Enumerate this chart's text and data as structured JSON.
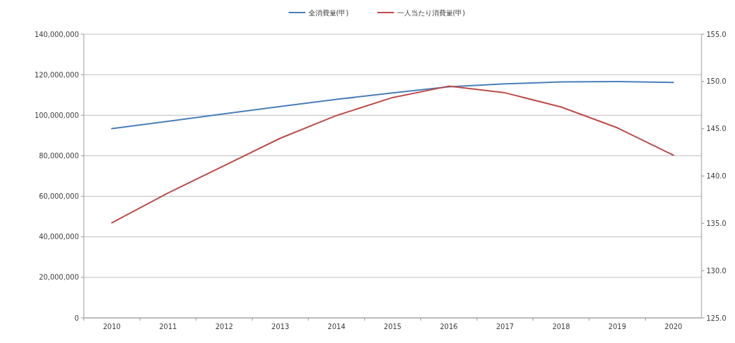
{
  "chart_data": {
    "type": "line",
    "categories": [
      "2010",
      "2011",
      "2012",
      "2013",
      "2014",
      "2015",
      "2016",
      "2017",
      "2018",
      "2019",
      "2020"
    ],
    "series": [
      {
        "name": "全消費量(甲)",
        "color": "#4a7ebb",
        "values": [
          93400000,
          97000000,
          100700000,
          104300000,
          107800000,
          111000000,
          114000000,
          115500000,
          116400000,
          116600000,
          116200000
        ]
      },
      {
        "name": "一人当たり消費量(甲)",
        "color": "#be4b48",
        "axis": "y2",
        "values": [
          135.05,
          138.2,
          141.1,
          144.0,
          146.4,
          148.3,
          149.5,
          148.8,
          147.3,
          145.1,
          142.2
        ]
      }
    ],
    "ylim": [
      0,
      140000000
    ],
    "yticks": [
      {
        "value": 0,
        "label": "0"
      },
      {
        "value": 20000000,
        "label": "20,000,000"
      },
      {
        "value": 40000000,
        "label": "40,000,000"
      },
      {
        "value": 60000000,
        "label": "60,000,000"
      },
      {
        "value": 80000000,
        "label": "80,000,000"
      },
      {
        "value": 100000000,
        "label": "100,000,000"
      },
      {
        "value": 120000000,
        "label": "120,000,000"
      },
      {
        "value": 140000000,
        "label": "140,000,000"
      }
    ],
    "y2lim": [
      125,
      155
    ],
    "y2ticks": [
      {
        "value": 125,
        "label": "125.0"
      },
      {
        "value": 130,
        "label": "130.0"
      },
      {
        "value": 135,
        "label": "135.0"
      },
      {
        "value": 140,
        "label": "140.0"
      },
      {
        "value": 145,
        "label": "145.0"
      },
      {
        "value": 150,
        "label": "150.0"
      },
      {
        "value": 155,
        "label": "155.0"
      }
    ],
    "grid": "y",
    "legend": "top",
    "marker": "none",
    "line_style": "solid"
  }
}
